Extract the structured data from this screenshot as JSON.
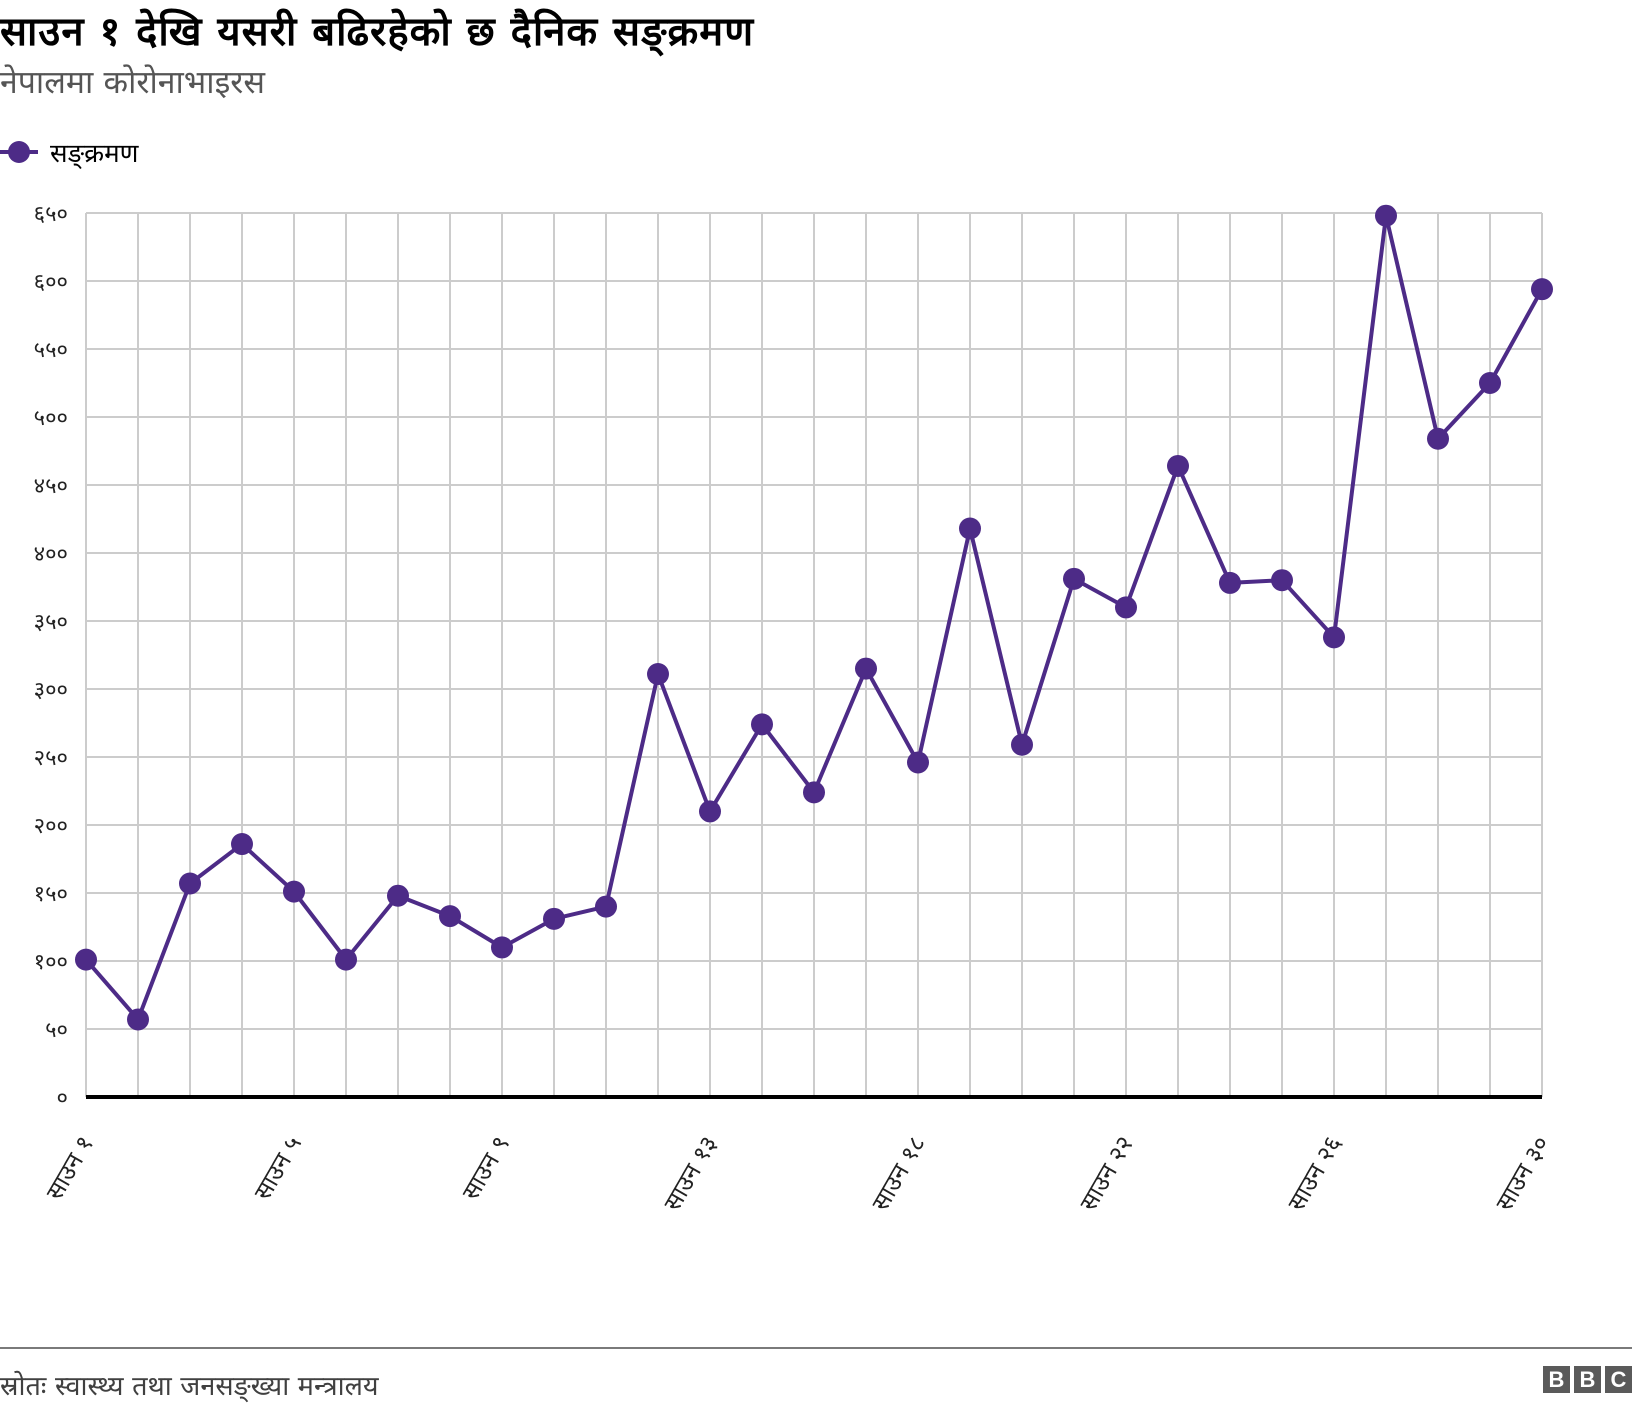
{
  "header": {
    "title": "साउन १ देखि यसरी बढिरहेको छ दैनिक सङ्क्रमण",
    "subtitle": "नेपालमा कोरोनाभाइरस"
  },
  "legend": {
    "label": "सङ्क्रमण",
    "color": "#4d2b87"
  },
  "footer": {
    "source": "स्रोतः स्वास्थ्य तथा जनसङ्ख्या मन्त्रालय",
    "logo_letters": [
      "B",
      "B",
      "C"
    ]
  },
  "chart_data": {
    "type": "line",
    "title": "साउन १ देखि यसरी बढिरहेको छ दैनिक सङ्क्रमण",
    "subtitle": "नेपालमा कोरोनाभाइरस",
    "xlabel": "",
    "ylabel": "",
    "ylim": [
      0,
      650
    ],
    "grid": true,
    "legend_position": "top-left",
    "y_ticks": [
      0,
      50,
      100,
      150,
      200,
      250,
      300,
      350,
      400,
      450,
      500,
      550,
      600,
      650
    ],
    "y_tick_labels": [
      "०",
      "५०",
      "१००",
      "१५०",
      "२००",
      "२५०",
      "३००",
      "३५०",
      "४००",
      "४५०",
      "५००",
      "५५०",
      "६००",
      "६५०"
    ],
    "x_tick_labels": [
      {
        "index": 0,
        "label": "साउन १"
      },
      {
        "index": 4,
        "label": "साउन ५"
      },
      {
        "index": 8,
        "label": "साउन ९"
      },
      {
        "index": 12,
        "label": "साउन १३"
      },
      {
        "index": 16,
        "label": "साउन १८"
      },
      {
        "index": 20,
        "label": "साउन २२"
      },
      {
        "index": 24,
        "label": "साउन २६"
      },
      {
        "index": 28,
        "label": "साउन ३०"
      }
    ],
    "series": [
      {
        "name": "सङ्क्रमण",
        "color": "#4d2b87",
        "values": [
          101,
          57,
          157,
          186,
          151,
          101,
          148,
          133,
          110,
          131,
          140,
          311,
          210,
          274,
          224,
          315,
          246,
          418,
          259,
          381,
          360,
          464,
          378,
          380,
          338,
          648,
          484,
          525,
          594
        ]
      }
    ]
  },
  "colors": {
    "series": "#4d2b87",
    "grid": "#cccccc",
    "axis": "#000000",
    "tick_text": "#222222"
  }
}
